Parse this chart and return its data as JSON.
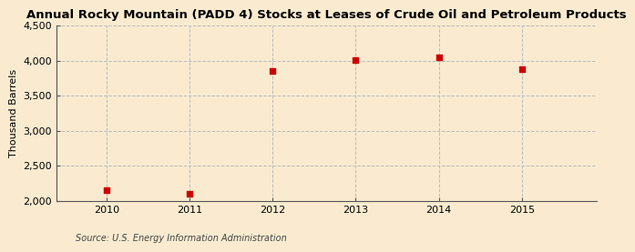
{
  "title": "Annual Rocky Mountain (PADD 4) Stocks at Leases of Crude Oil and Petroleum Products",
  "ylabel": "Thousand Barrels",
  "source_text": "Source: U.S. Energy Information Administration",
  "x": [
    2010,
    2011,
    2012,
    2013,
    2014,
    2015
  ],
  "y": [
    2150,
    2105,
    3855,
    4005,
    4050,
    3880
  ],
  "xlim": [
    2009.4,
    2015.9
  ],
  "ylim": [
    2000,
    4500
  ],
  "yticks": [
    2000,
    2500,
    3000,
    3500,
    4000,
    4500
  ],
  "ytick_labels": [
    "2,000",
    "2,500",
    "3,000",
    "3,500",
    "4,000",
    "4,500"
  ],
  "xticks": [
    2010,
    2011,
    2012,
    2013,
    2014,
    2015
  ],
  "marker_color": "#cc0000",
  "marker": "s",
  "marker_size": 4,
  "background_color": "#faebd0",
  "plot_bg_color": "#faebd0",
  "grid_color": "#bbbbbb",
  "spine_color": "#555555",
  "title_fontsize": 9.5,
  "label_fontsize": 8,
  "tick_fontsize": 8,
  "source_fontsize": 7
}
